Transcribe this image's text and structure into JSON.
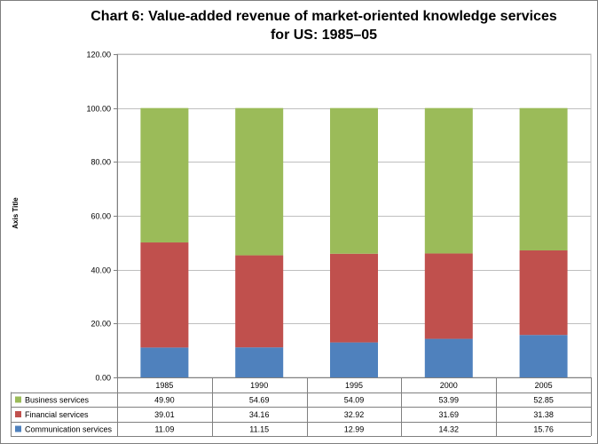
{
  "chart_data": {
    "type": "bar",
    "stacked": true,
    "title_line1": "Chart 6: Value-added revenue of market-oriented knowledge services",
    "title_line2": "for US: 1985–05",
    "ylabel": "Axis Title",
    "xlabel": "",
    "ylim": [
      0,
      120
    ],
    "yticks": [
      0,
      20,
      40,
      60,
      80,
      100,
      120
    ],
    "ytick_labels": [
      "0.00",
      "20.00",
      "40.00",
      "60.00",
      "80.00",
      "100.00",
      "120.00"
    ],
    "grid": true,
    "legend": "data-table",
    "categories": [
      "1985",
      "1990",
      "1995",
      "2000",
      "2005"
    ],
    "series": [
      {
        "name": "Communication services",
        "color": "#4f81bd",
        "values": [
          11.09,
          11.15,
          12.99,
          14.32,
          15.76
        ],
        "labels": [
          "11.09",
          "11.15",
          "12.99",
          "14.32",
          "15.76"
        ]
      },
      {
        "name": "Financial services",
        "color": "#c0504d",
        "values": [
          39.01,
          34.16,
          32.92,
          31.69,
          31.38
        ],
        "labels": [
          "39.01",
          "34.16",
          "32.92",
          "31.69",
          "31.38"
        ]
      },
      {
        "name": "Business services",
        "color": "#9bbb59",
        "values": [
          49.9,
          54.69,
          54.09,
          53.99,
          52.85
        ],
        "labels": [
          "49.90",
          "54.69",
          "54.09",
          "53.99",
          "52.85"
        ]
      }
    ],
    "table_row_order": [
      "Business services",
      "Financial services",
      "Communication services"
    ]
  }
}
